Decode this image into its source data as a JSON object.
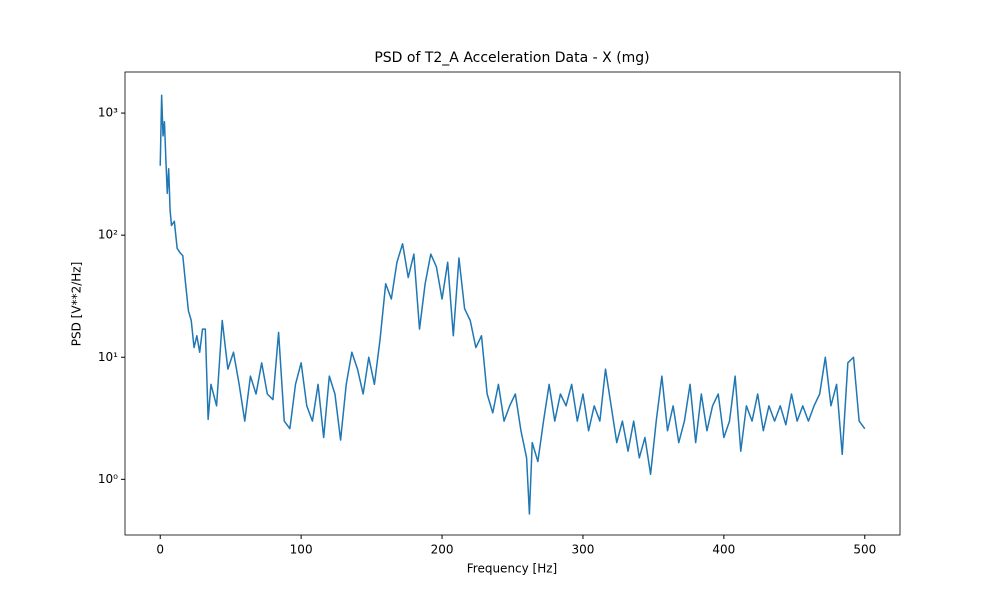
{
  "chart_data": {
    "type": "line",
    "title": "PSD of T2_A Acceleration Data - X (mg)",
    "x_label": "Frequency [Hz]",
    "y_label": "PSD [V**2/Hz]",
    "y_scale": "log",
    "grid": false,
    "xlim": [
      -25,
      525
    ],
    "ylim": [
      0.35,
      2170
    ],
    "xticks": [
      0,
      100,
      200,
      300,
      400,
      500
    ],
    "yticks": [
      {
        "value": 1,
        "label": "10⁰"
      },
      {
        "value": 10,
        "label": "10¹"
      },
      {
        "value": 100,
        "label": "10²"
      },
      {
        "value": 1000,
        "label": "10³"
      }
    ],
    "x": [
      0,
      1,
      2,
      3,
      4,
      5,
      6,
      7,
      8,
      10,
      12,
      14,
      16,
      18,
      20,
      22,
      24,
      26,
      28,
      30,
      32,
      34,
      36,
      40,
      44,
      48,
      52,
      56,
      60,
      64,
      68,
      72,
      76,
      80,
      84,
      88,
      92,
      96,
      100,
      104,
      108,
      112,
      116,
      120,
      124,
      128,
      132,
      136,
      140,
      144,
      148,
      152,
      156,
      160,
      164,
      168,
      172,
      176,
      180,
      184,
      188,
      192,
      196,
      200,
      204,
      208,
      212,
      216,
      220,
      224,
      228,
      232,
      236,
      240,
      244,
      248,
      252,
      256,
      260,
      262,
      264,
      268,
      272,
      276,
      280,
      284,
      288,
      292,
      296,
      300,
      304,
      308,
      312,
      316,
      320,
      324,
      328,
      332,
      336,
      340,
      344,
      348,
      352,
      356,
      360,
      364,
      368,
      372,
      376,
      380,
      384,
      388,
      392,
      396,
      400,
      404,
      408,
      412,
      416,
      420,
      424,
      428,
      432,
      436,
      440,
      444,
      448,
      452,
      456,
      460,
      464,
      468,
      472,
      476,
      480,
      484,
      488,
      492,
      496,
      500
    ],
    "series": [
      {
        "name": "PSD",
        "color": "#1f77b4",
        "values": [
          370,
          1400,
          650,
          850,
          420,
          220,
          350,
          160,
          120,
          130,
          78,
          72,
          68,
          40,
          24,
          20,
          12,
          15,
          11,
          17,
          17,
          3.1,
          6,
          4,
          20,
          8,
          11,
          6,
          3,
          7,
          5,
          9,
          5,
          4.5,
          16,
          3,
          2.6,
          6,
          9,
          4,
          3,
          6,
          2.2,
          7,
          5,
          2.1,
          6,
          11,
          8,
          5,
          10,
          6,
          14,
          40,
          30,
          60,
          85,
          45,
          70,
          17,
          40,
          70,
          55,
          30,
          60,
          15,
          65,
          25,
          20,
          12,
          15,
          5,
          3.5,
          6,
          3,
          4,
          5,
          2.5,
          1.5,
          0.52,
          2,
          1.4,
          3,
          6,
          3,
          5,
          4,
          6,
          3,
          5,
          2.5,
          4,
          3,
          8,
          4,
          2,
          3,
          1.7,
          3,
          1.5,
          2.2,
          1.1,
          3,
          7,
          2.5,
          4,
          2,
          3,
          6,
          2,
          5,
          2.5,
          4,
          5,
          2.2,
          3,
          7,
          1.7,
          4,
          3,
          5,
          2.5,
          4,
          3,
          4,
          2.8,
          5,
          3,
          4,
          3,
          4,
          5,
          10,
          4,
          6,
          1.6,
          9,
          10,
          3,
          2.6
        ]
      }
    ]
  }
}
